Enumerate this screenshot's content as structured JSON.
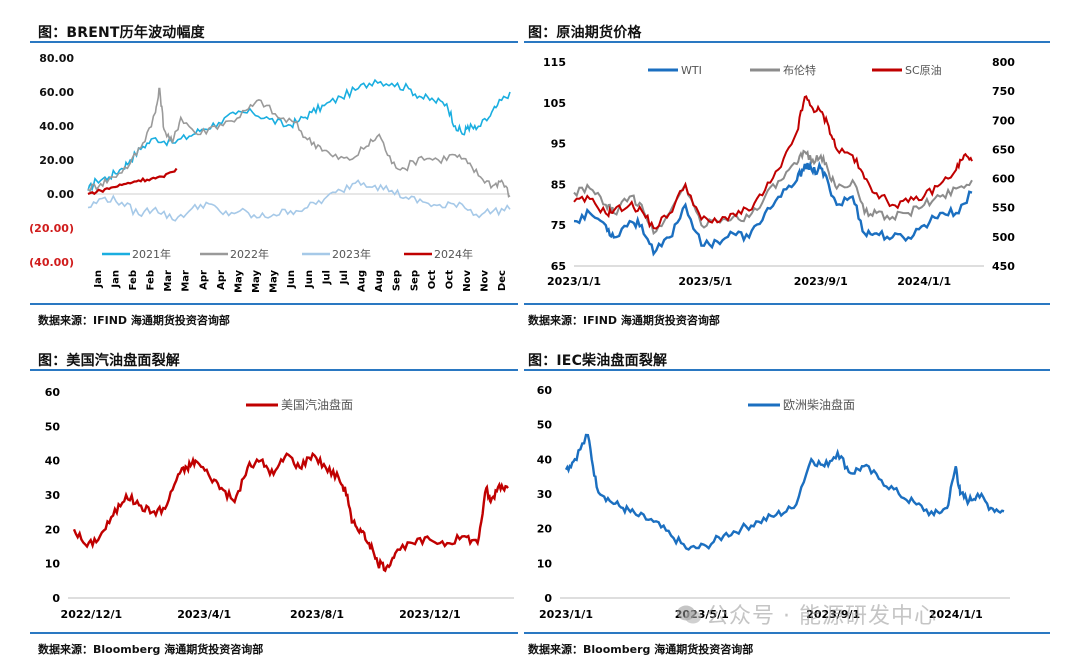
{
  "panels": [
    {
      "title": "图：BRENT历年波动幅度",
      "source": "数据来源：IFIND   海通期货投资咨询部"
    },
    {
      "title": "图：原油期货价格",
      "source": "数据来源：IFIND   海通期货投资咨询部"
    },
    {
      "title": "图：美国汽油盘面裂解",
      "source": "数据来源：Bloomberg   海通期货投资咨询部"
    },
    {
      "title": "图：IEC柴油盘面裂解",
      "source": "数据来源：Bloomberg   海通期货投资咨询部"
    }
  ],
  "watermark": "公众号 · 能源研发中心",
  "chart_data": [
    {
      "type": "line",
      "title": "图：BRENT历年波动幅度",
      "ylim": [
        -40,
        80
      ],
      "yticks": [
        80,
        60,
        40,
        20,
        0,
        -20,
        -40
      ],
      "ytick_labels": [
        "80.00",
        "60.00",
        "40.00",
        "20.00",
        "0.00",
        "(20.00)",
        "(40.00)"
      ],
      "ytick_neg_color": "#d01c1c",
      "x_labels": [
        "Jan",
        "Jan",
        "Feb",
        "Feb",
        "Mar",
        "Mar",
        "Apr",
        "Apr",
        "May",
        "May",
        "May",
        "Jun",
        "Jun",
        "Jul",
        "Jul",
        "Aug",
        "Aug",
        "Sep",
        "Sep",
        "Oct",
        "Oct",
        "Nov",
        "Nov",
        "Dec"
      ],
      "series": [
        {
          "name": "2021年",
          "color": "#1aaee0",
          "x": [
            0,
            0.02,
            0.05,
            0.08,
            0.1,
            0.13,
            0.16,
            0.2,
            0.24,
            0.27,
            0.31,
            0.35,
            0.39,
            0.43,
            0.47,
            0.5,
            0.53,
            0.56,
            0.6,
            0.64,
            0.68,
            0.72,
            0.76,
            0.79,
            0.82,
            0.85,
            0.87,
            0.89,
            0.9,
            0.92,
            0.95,
            0.97,
            1
          ],
          "y": [
            2,
            8,
            10,
            15,
            20,
            28,
            33,
            30,
            34,
            38,
            42,
            47,
            48,
            44,
            40,
            43,
            48,
            52,
            57,
            62,
            67,
            65,
            62,
            57,
            55,
            53,
            40,
            35,
            40,
            38,
            45,
            52,
            60
          ]
        },
        {
          "name": "2022年",
          "color": "#9a9a9a",
          "x": [
            0,
            0.03,
            0.06,
            0.1,
            0.13,
            0.16,
            0.17,
            0.18,
            0.2,
            0.22,
            0.26,
            0.3,
            0.34,
            0.38,
            0.41,
            0.45,
            0.49,
            0.52,
            0.55,
            0.58,
            0.62,
            0.66,
            0.69,
            0.72,
            0.75,
            0.79,
            0.83,
            0.87,
            0.9,
            0.93,
            0.96,
            0.98,
            1
          ],
          "y": [
            3,
            6,
            10,
            18,
            30,
            48,
            62,
            38,
            30,
            45,
            35,
            40,
            43,
            50,
            55,
            45,
            42,
            32,
            28,
            22,
            20,
            28,
            35,
            18,
            15,
            22,
            20,
            23,
            18,
            10,
            5,
            8,
            -1
          ]
        },
        {
          "name": "2023年",
          "color": "#a6c9e8",
          "x": [
            0,
            0.04,
            0.08,
            0.12,
            0.16,
            0.2,
            0.24,
            0.28,
            0.32,
            0.36,
            0.4,
            0.44,
            0.48,
            0.52,
            0.56,
            0.6,
            0.64,
            0.68,
            0.72,
            0.76,
            0.8,
            0.84,
            0.88,
            0.92,
            0.96,
            1
          ],
          "y": [
            -8,
            -2,
            -5,
            -12,
            -8,
            -15,
            -10,
            -5,
            -12,
            -10,
            -14,
            -12,
            -10,
            -8,
            -3,
            2,
            8,
            5,
            2,
            -3,
            -5,
            -8,
            -5,
            -12,
            -10,
            -9
          ]
        },
        {
          "name": "2024年",
          "color": "#c00000",
          "x": [
            0,
            0.03,
            0.06,
            0.09,
            0.12,
            0.15,
            0.18,
            0.21
          ],
          "y": [
            0,
            2,
            4,
            6,
            8,
            9,
            10,
            15
          ]
        }
      ],
      "legend_position": "bottom"
    },
    {
      "type": "line",
      "title": "图：原油期货价格",
      "y_left_lim": [
        65,
        115
      ],
      "y_left_ticks": [
        115,
        105,
        95,
        85,
        75,
        65
      ],
      "y_right_lim": [
        450,
        800
      ],
      "y_right_ticks": [
        800,
        750,
        700,
        650,
        600,
        550,
        500,
        450
      ],
      "x_labels": [
        "2023/1/1",
        "2023/5/1",
        "2023/9/1",
        "2024/1/1"
      ],
      "series": [
        {
          "name": "WTI",
          "color": "#1b6fc0",
          "axis": "left",
          "x": [
            0,
            0.04,
            0.08,
            0.1,
            0.14,
            0.17,
            0.2,
            0.24,
            0.28,
            0.32,
            0.36,
            0.4,
            0.44,
            0.48,
            0.52,
            0.56,
            0.58,
            0.6,
            0.62,
            0.64,
            0.66,
            0.7,
            0.73,
            0.76,
            0.8,
            0.84,
            0.88,
            0.92,
            0.96,
            1
          ],
          "y": [
            76,
            78,
            75,
            72,
            76,
            75,
            68,
            72,
            80,
            70,
            71,
            73,
            72,
            78,
            82,
            86,
            90,
            88,
            89,
            85,
            80,
            82,
            73,
            73,
            72,
            72,
            75,
            78,
            78,
            83
          ]
        },
        {
          "name": "布伦特",
          "color": "#8c8c8c",
          "axis": "left",
          "x": [
            0,
            0.04,
            0.08,
            0.1,
            0.14,
            0.17,
            0.2,
            0.24,
            0.28,
            0.32,
            0.36,
            0.4,
            0.44,
            0.48,
            0.52,
            0.56,
            0.58,
            0.6,
            0.62,
            0.64,
            0.66,
            0.7,
            0.73,
            0.76,
            0.8,
            0.84,
            0.88,
            0.92,
            0.96,
            1
          ],
          "y": [
            83,
            84,
            80,
            78,
            82,
            80,
            73,
            78,
            85,
            75,
            76,
            77,
            77,
            82,
            86,
            90,
            93,
            91,
            92,
            88,
            84,
            86,
            78,
            78,
            77,
            78,
            80,
            82,
            84,
            86
          ]
        },
        {
          "name": "SC原油",
          "color": "#c00000",
          "axis": "right",
          "x": [
            0,
            0.04,
            0.08,
            0.1,
            0.14,
            0.17,
            0.2,
            0.24,
            0.28,
            0.32,
            0.36,
            0.4,
            0.44,
            0.48,
            0.52,
            0.56,
            0.58,
            0.6,
            0.62,
            0.64,
            0.66,
            0.7,
            0.73,
            0.76,
            0.8,
            0.84,
            0.88,
            0.92,
            0.96,
            0.98,
            1
          ],
          "y": [
            560,
            565,
            540,
            545,
            555,
            545,
            515,
            540,
            590,
            530,
            525,
            540,
            545,
            580,
            620,
            680,
            740,
            720,
            715,
            690,
            650,
            640,
            600,
            575,
            555,
            560,
            570,
            590,
            615,
            640,
            630
          ]
        }
      ],
      "legend_position": "top"
    },
    {
      "type": "line",
      "title": "图：美国汽油盘面裂解",
      "ylim": [
        0,
        60
      ],
      "yticks": [
        60,
        50,
        40,
        30,
        20,
        10,
        0
      ],
      "x_labels": [
        "2022/12/1",
        "2023/4/1",
        "2023/8/1",
        "2023/12/1"
      ],
      "series": [
        {
          "name": "美国汽油盘面",
          "color": "#c00000",
          "x": [
            0,
            0.03,
            0.06,
            0.09,
            0.12,
            0.15,
            0.18,
            0.21,
            0.24,
            0.26,
            0.28,
            0.31,
            0.34,
            0.37,
            0.4,
            0.43,
            0.46,
            0.49,
            0.52,
            0.55,
            0.58,
            0.61,
            0.63,
            0.64,
            0.66,
            0.68,
            0.7,
            0.72,
            0.74,
            0.78,
            0.82,
            0.86,
            0.9,
            0.93,
            0.95,
            0.96,
            0.98,
            1
          ],
          "y": [
            20,
            15,
            18,
            24,
            30,
            27,
            25,
            26,
            36,
            38,
            40,
            36,
            32,
            28,
            38,
            40,
            36,
            42,
            38,
            42,
            38,
            35,
            30,
            22,
            20,
            16,
            10,
            9,
            13,
            16,
            17,
            16,
            18,
            16,
            32,
            28,
            33,
            32
          ]
        }
      ],
      "legend_position": "top"
    },
    {
      "type": "line",
      "title": "图：IEC柴油盘面裂解",
      "ylim": [
        0,
        60
      ],
      "yticks": [
        60,
        50,
        40,
        30,
        20,
        10,
        0
      ],
      "x_labels": [
        "2023/1/1",
        "2023/5/1",
        "2023/9/1",
        "2024/1/1"
      ],
      "series": [
        {
          "name": "欧洲柴油盘面",
          "color": "#1b6fc0",
          "x": [
            0,
            0.02,
            0.05,
            0.07,
            0.1,
            0.13,
            0.16,
            0.2,
            0.24,
            0.28,
            0.32,
            0.36,
            0.4,
            0.44,
            0.48,
            0.52,
            0.56,
            0.59,
            0.62,
            0.65,
            0.68,
            0.72,
            0.76,
            0.8,
            0.84,
            0.87,
            0.89,
            0.9,
            0.92,
            0.94,
            0.97,
            1
          ],
          "y": [
            37,
            40,
            47,
            32,
            28,
            26,
            24,
            22,
            18,
            14,
            15,
            18,
            20,
            22,
            24,
            26,
            40,
            38,
            42,
            36,
            38,
            34,
            30,
            27,
            24,
            26,
            38,
            30,
            28,
            30,
            26,
            25
          ]
        }
      ],
      "legend_position": "top"
    }
  ]
}
